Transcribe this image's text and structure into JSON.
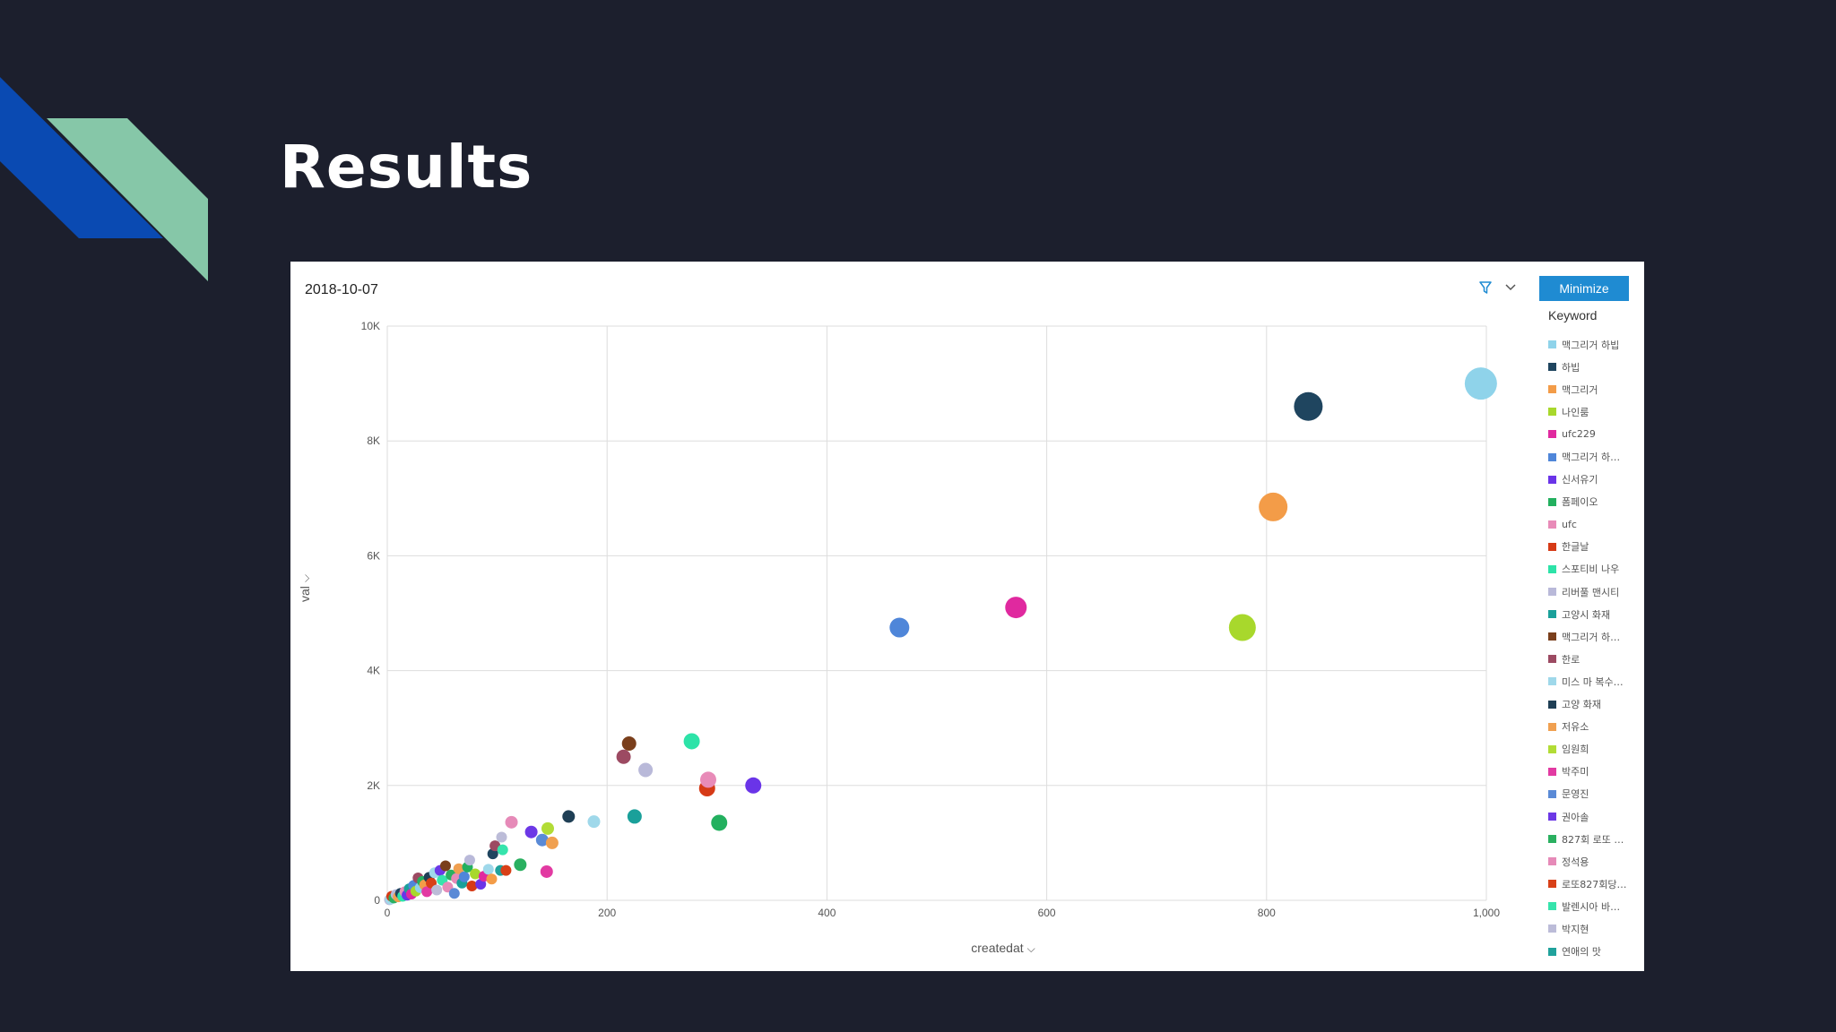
{
  "slide": {
    "title": "Results"
  },
  "panel": {
    "date": "2018-10-07",
    "minimize_label": "Minimize",
    "legend_title": "Keyword"
  },
  "colors": {
    "background": "#1c1f2d",
    "deco_blue": "#0a4ab2",
    "deco_green": "#86c7a8",
    "button": "#1f8bd2"
  },
  "legend": [
    {
      "label": "맥그리거 하빕",
      "color": "#8fd3ea"
    },
    {
      "label": "하빕",
      "color": "#1f455f"
    },
    {
      "label": "맥그리거",
      "color": "#f39c48"
    },
    {
      "label": "나인룸",
      "color": "#a8d82c"
    },
    {
      "label": "ufc229",
      "color": "#e0299f"
    },
    {
      "label": "맥그리거 하…",
      "color": "#4f86d9"
    },
    {
      "label": "신서유기",
      "color": "#6a34e8"
    },
    {
      "label": "폼페이오",
      "color": "#23b05f"
    },
    {
      "label": "ufc",
      "color": "#e88bb8"
    },
    {
      "label": "한글날",
      "color": "#d63a16"
    },
    {
      "label": "스포티비 나우",
      "color": "#2de3a8"
    },
    {
      "label": "리버풀 맨시티",
      "color": "#b9b9d9"
    },
    {
      "label": "고양시 화재",
      "color": "#1aa09a"
    },
    {
      "label": "맥그리거 하…",
      "color": "#7a3f1c"
    },
    {
      "label": "한로",
      "color": "#9c4a62"
    },
    {
      "label": "미스 마 복수…",
      "color": "#9fd8ea"
    },
    {
      "label": "고양 화재",
      "color": "#1f3f55"
    },
    {
      "label": "저유소",
      "color": "#f0a050"
    },
    {
      "label": "임원희",
      "color": "#b2dc36"
    },
    {
      "label": "박주미",
      "color": "#e23aa2"
    },
    {
      "label": "문영진",
      "color": "#5a8ad6"
    },
    {
      "label": "권아솔",
      "color": "#6c38e6"
    },
    {
      "label": "827회 로또 …",
      "color": "#2ab060"
    },
    {
      "label": "정석용",
      "color": "#e68ab8"
    },
    {
      "label": "로또827회당…",
      "color": "#d84018"
    },
    {
      "label": "발렌시아 바…",
      "color": "#36e4ac"
    },
    {
      "label": "박지현",
      "color": "#bcbcd8"
    },
    {
      "label": "연애의 맛",
      "color": "#20a29c"
    }
  ],
  "chart_data": {
    "type": "scatter",
    "xlabel": "createdat",
    "ylabel": "val",
    "xlim": [
      0,
      1000
    ],
    "ylim": [
      0,
      10000
    ],
    "xticks": [
      0,
      200,
      400,
      600,
      800,
      1000
    ],
    "xtick_labels": [
      "0",
      "200",
      "400",
      "600",
      "800",
      "1,000"
    ],
    "yticks": [
      0,
      2000,
      4000,
      6000,
      8000,
      10000
    ],
    "ytick_labels": [
      "0",
      "2K",
      "4K",
      "6K",
      "8K",
      "10K"
    ],
    "grid": true,
    "legend_position": "right",
    "points": [
      {
        "x": 995,
        "y": 9000,
        "size": 18,
        "color": "#8fd3ea"
      },
      {
        "x": 838,
        "y": 8600,
        "size": 16,
        "color": "#1f455f"
      },
      {
        "x": 806,
        "y": 6850,
        "size": 16,
        "color": "#f39c48"
      },
      {
        "x": 778,
        "y": 4750,
        "size": 15,
        "color": "#a8d82c"
      },
      {
        "x": 572,
        "y": 5100,
        "size": 12,
        "color": "#e0299f"
      },
      {
        "x": 466,
        "y": 4750,
        "size": 11,
        "color": "#4f86d9"
      },
      {
        "x": 333,
        "y": 2000,
        "size": 9,
        "color": "#6a34e8"
      },
      {
        "x": 302,
        "y": 1350,
        "size": 9,
        "color": "#23b05f"
      },
      {
        "x": 292,
        "y": 2100,
        "size": 9,
        "color": "#e88bb8"
      },
      {
        "x": 291,
        "y": 1950,
        "size": 9,
        "color": "#d63a16"
      },
      {
        "x": 277,
        "y": 2770,
        "size": 9,
        "color": "#2de3a8"
      },
      {
        "x": 235,
        "y": 2270,
        "size": 8,
        "color": "#b9b9d9"
      },
      {
        "x": 225,
        "y": 1460,
        "size": 8,
        "color": "#1aa09a"
      },
      {
        "x": 220,
        "y": 2730,
        "size": 8,
        "color": "#7a3f1c"
      },
      {
        "x": 215,
        "y": 2500,
        "size": 8,
        "color": "#9c4a62"
      },
      {
        "x": 188,
        "y": 1370,
        "size": 7,
        "color": "#9fd8ea"
      },
      {
        "x": 165,
        "y": 1460,
        "size": 7,
        "color": "#1f3f55"
      },
      {
        "x": 150,
        "y": 1000,
        "size": 7,
        "color": "#f0a050"
      },
      {
        "x": 146,
        "y": 1250,
        "size": 7,
        "color": "#b2dc36"
      },
      {
        "x": 145,
        "y": 500,
        "size": 7,
        "color": "#e23aa2"
      },
      {
        "x": 141,
        "y": 1050,
        "size": 7,
        "color": "#5a8ad6"
      },
      {
        "x": 131,
        "y": 1190,
        "size": 7,
        "color": "#6c38e6"
      },
      {
        "x": 121,
        "y": 620,
        "size": 7,
        "color": "#2ab060"
      },
      {
        "x": 113,
        "y": 1360,
        "size": 7,
        "color": "#e68ab8"
      },
      {
        "x": 108,
        "y": 520,
        "size": 6,
        "color": "#d84018"
      },
      {
        "x": 105,
        "y": 880,
        "size": 6,
        "color": "#36e4ac"
      },
      {
        "x": 104,
        "y": 1100,
        "size": 6,
        "color": "#bcbcd8"
      },
      {
        "x": 103,
        "y": 520,
        "size": 6,
        "color": "#20a29c"
      },
      {
        "x": 98,
        "y": 950,
        "size": 6,
        "color": "#9c4a62"
      },
      {
        "x": 96,
        "y": 810,
        "size": 6,
        "color": "#1f455f"
      },
      {
        "x": 95,
        "y": 370,
        "size": 6,
        "color": "#f39c48"
      },
      {
        "x": 92,
        "y": 540,
        "size": 6,
        "color": "#9fd8ea"
      },
      {
        "x": 88,
        "y": 420,
        "size": 6,
        "color": "#e0299f"
      },
      {
        "x": 85,
        "y": 280,
        "size": 6,
        "color": "#6a34e8"
      },
      {
        "x": 80,
        "y": 460,
        "size": 6,
        "color": "#a8d82c"
      },
      {
        "x": 77,
        "y": 250,
        "size": 6,
        "color": "#d63a16"
      },
      {
        "x": 75,
        "y": 700,
        "size": 6,
        "color": "#b9b9d9"
      },
      {
        "x": 73,
        "y": 580,
        "size": 6,
        "color": "#23b05f"
      },
      {
        "x": 70,
        "y": 410,
        "size": 6,
        "color": "#4f86d9"
      },
      {
        "x": 68,
        "y": 300,
        "size": 6,
        "color": "#1aa09a"
      },
      {
        "x": 65,
        "y": 550,
        "size": 6,
        "color": "#f0a050"
      },
      {
        "x": 63,
        "y": 380,
        "size": 6,
        "color": "#e88bb8"
      },
      {
        "x": 61,
        "y": 120,
        "size": 6,
        "color": "#5a8ad6"
      },
      {
        "x": 58,
        "y": 440,
        "size": 6,
        "color": "#2ab060"
      },
      {
        "x": 55,
        "y": 230,
        "size": 6,
        "color": "#e68ab8"
      },
      {
        "x": 53,
        "y": 600,
        "size": 6,
        "color": "#7a3f1c"
      },
      {
        "x": 50,
        "y": 350,
        "size": 6,
        "color": "#36e4ac"
      },
      {
        "x": 48,
        "y": 520,
        "size": 6,
        "color": "#6c38e6"
      },
      {
        "x": 45,
        "y": 180,
        "size": 6,
        "color": "#bcbcd8"
      },
      {
        "x": 43,
        "y": 480,
        "size": 6,
        "color": "#9fd8ea"
      },
      {
        "x": 40,
        "y": 300,
        "size": 6,
        "color": "#d84018"
      },
      {
        "x": 38,
        "y": 400,
        "size": 6,
        "color": "#1f3f55"
      },
      {
        "x": 36,
        "y": 150,
        "size": 6,
        "color": "#e23aa2"
      },
      {
        "x": 34,
        "y": 270,
        "size": 6,
        "color": "#f39c48"
      },
      {
        "x": 32,
        "y": 330,
        "size": 6,
        "color": "#23b05f"
      },
      {
        "x": 30,
        "y": 220,
        "size": 6,
        "color": "#8fd3ea"
      },
      {
        "x": 28,
        "y": 390,
        "size": 6,
        "color": "#9c4a62"
      },
      {
        "x": 26,
        "y": 160,
        "size": 6,
        "color": "#a8d82c"
      },
      {
        "x": 24,
        "y": 260,
        "size": 6,
        "color": "#4f86d9"
      },
      {
        "x": 22,
        "y": 110,
        "size": 6,
        "color": "#e0299f"
      },
      {
        "x": 20,
        "y": 200,
        "size": 6,
        "color": "#1aa09a"
      },
      {
        "x": 18,
        "y": 90,
        "size": 6,
        "color": "#6a34e8"
      },
      {
        "x": 16,
        "y": 150,
        "size": 6,
        "color": "#e88bb8"
      },
      {
        "x": 14,
        "y": 70,
        "size": 6,
        "color": "#2de3a8"
      },
      {
        "x": 12,
        "y": 120,
        "size": 6,
        "color": "#1f455f"
      },
      {
        "x": 10,
        "y": 60,
        "size": 6,
        "color": "#f0a050"
      },
      {
        "x": 8,
        "y": 100,
        "size": 6,
        "color": "#b9b9d9"
      },
      {
        "x": 6,
        "y": 40,
        "size": 6,
        "color": "#2ab060"
      },
      {
        "x": 4,
        "y": 70,
        "size": 6,
        "color": "#d63a16"
      },
      {
        "x": 3,
        "y": 20,
        "size": 6,
        "color": "#9fd8ea"
      },
      {
        "x": 2,
        "y": 10,
        "size": 6,
        "color": "#bcbcd8"
      }
    ]
  }
}
